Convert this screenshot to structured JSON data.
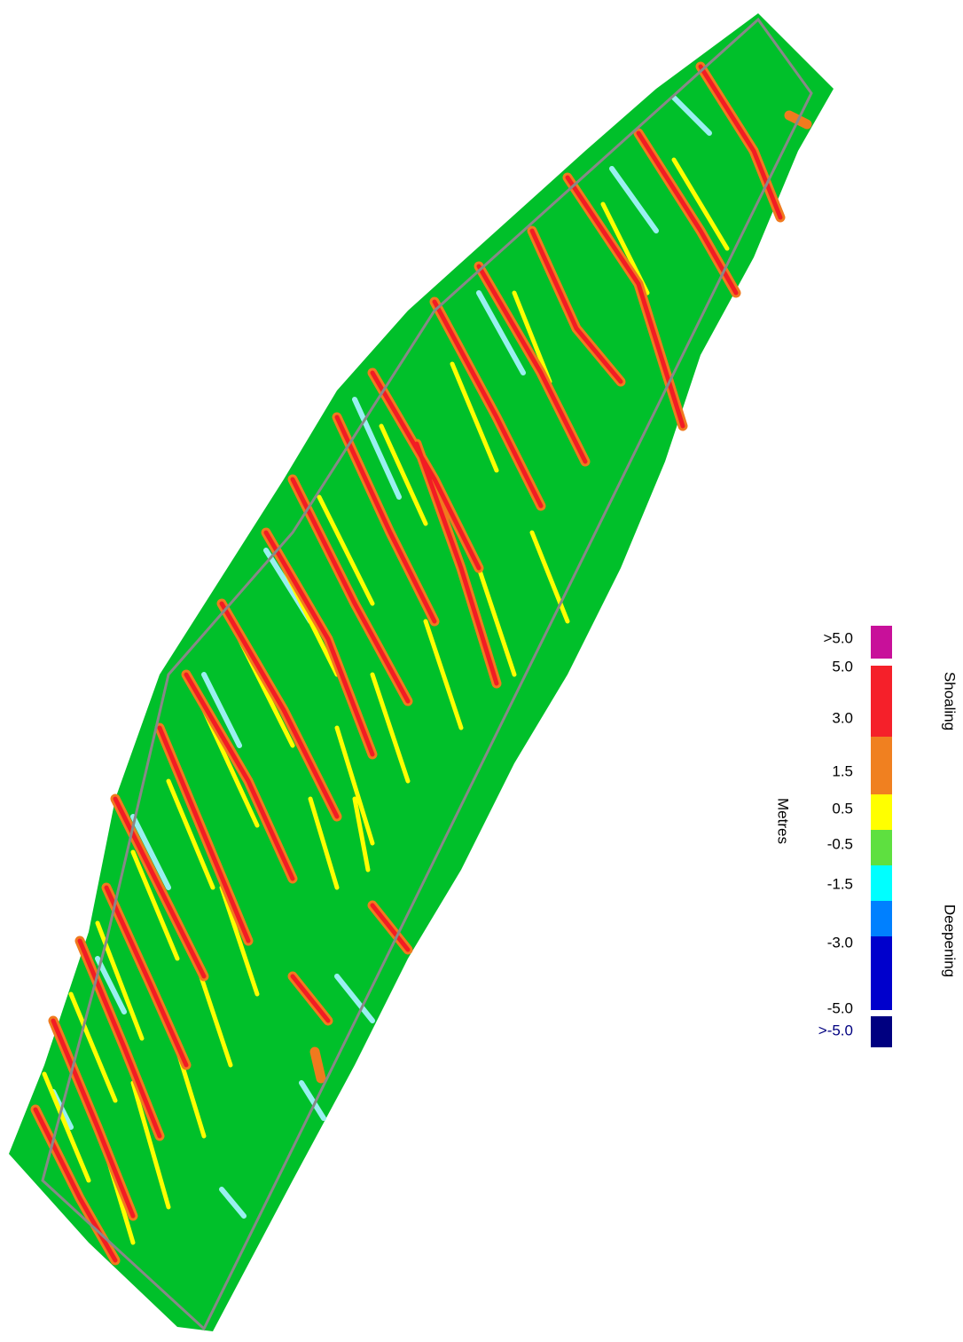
{
  "legend": {
    "title": "Metres",
    "upper_note": "Shoaling",
    "lower_note": "Deepening",
    "swatches": [
      "#c8109a",
      "#f5202a",
      "#f08020",
      "#ffff00",
      "#5ee040",
      "#00ffff",
      "#0080ff",
      "#0000cc",
      "#000080"
    ],
    "labels": [
      ">5.0",
      "5.0",
      "3.0",
      "1.5",
      "0.5",
      "-0.5",
      "-1.5",
      "-3.0",
      "-5.0",
      ">-5.0"
    ]
  }
}
